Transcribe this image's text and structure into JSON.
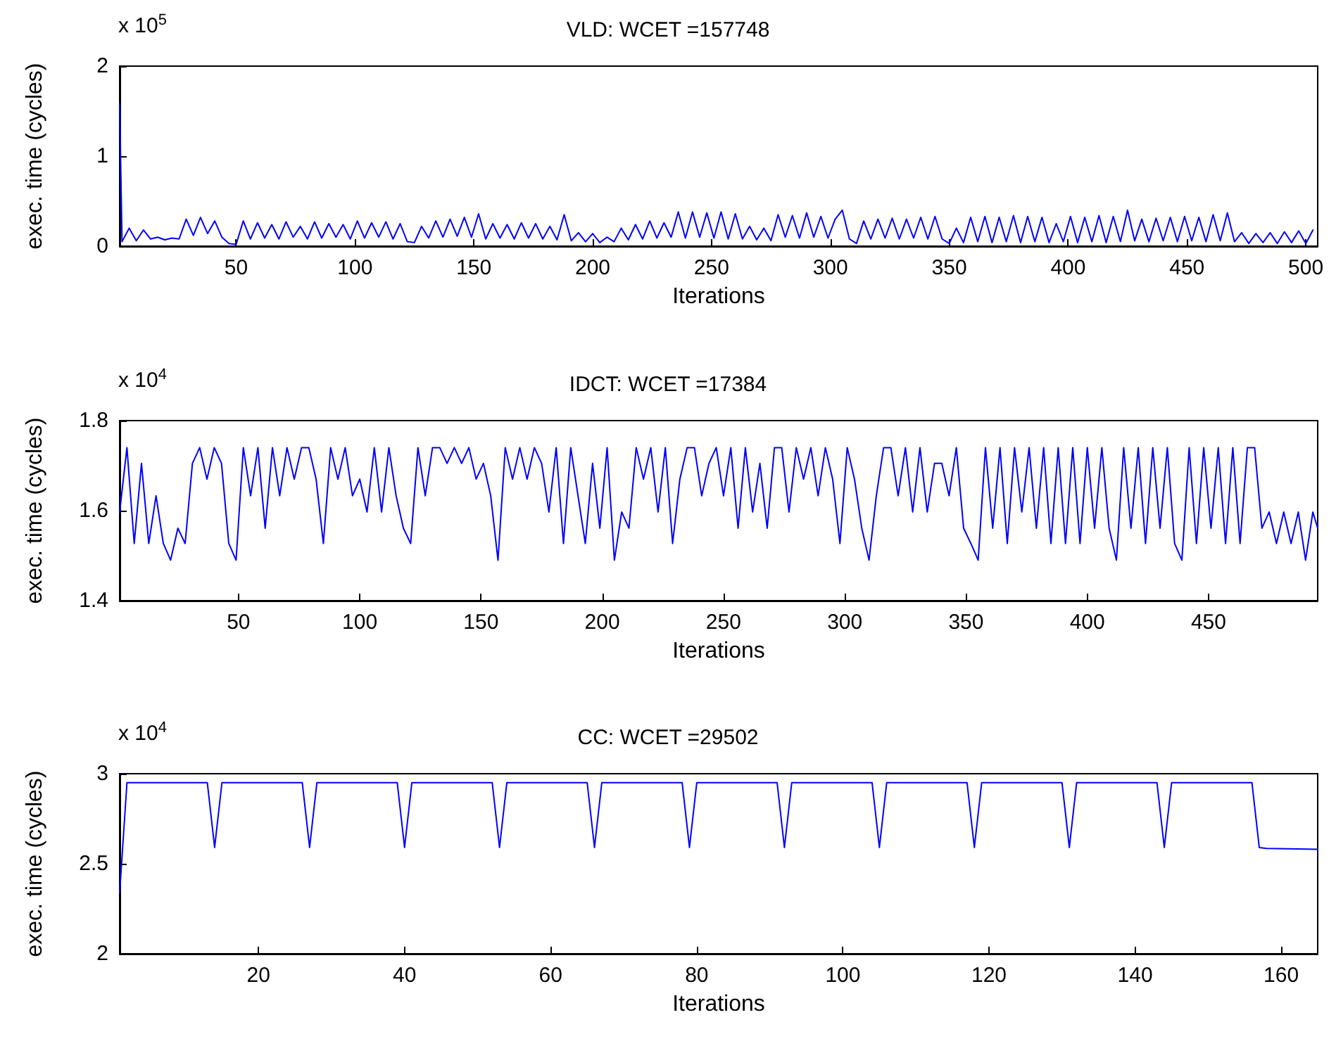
{
  "chart_data": [
    {
      "type": "line",
      "title": "VLD: WCET =157748",
      "xlabel": "Iterations",
      "ylabel": "exec. time (cycles)",
      "annotations": [
        "x 10$^{5}$"
      ],
      "color": "#0000ff",
      "marker": "none",
      "line_style": "solid",
      "xlim": [
        1,
        505
      ],
      "xticks": [
        50,
        100,
        150,
        200,
        250,
        300,
        350,
        400,
        450,
        500
      ],
      "ylim": [
        0,
        2
      ],
      "yticks": [
        0,
        1,
        2
      ],
      "x": [
        1,
        2,
        5,
        8,
        11,
        14,
        17,
        20,
        23,
        26,
        29,
        32,
        35,
        38,
        41,
        44,
        47,
        50,
        53,
        56,
        59,
        62,
        65,
        68,
        71,
        74,
        77,
        80,
        83,
        86,
        89,
        92,
        95,
        98,
        101,
        104,
        107,
        110,
        113,
        116,
        119,
        122,
        125,
        128,
        131,
        134,
        137,
        140,
        143,
        146,
        149,
        152,
        155,
        158,
        161,
        164,
        167,
        170,
        173,
        176,
        179,
        182,
        185,
        188,
        191,
        194,
        197,
        200,
        203,
        206,
        209,
        212,
        215,
        218,
        221,
        224,
        227,
        230,
        233,
        236,
        239,
        242,
        245,
        248,
        251,
        254,
        257,
        260,
        263,
        266,
        269,
        272,
        275,
        278,
        281,
        284,
        287,
        290,
        293,
        296,
        299,
        302,
        305,
        308,
        311,
        314,
        317,
        320,
        323,
        326,
        329,
        332,
        335,
        338,
        341,
        344,
        347,
        350,
        353,
        356,
        359,
        362,
        365,
        368,
        371,
        374,
        377,
        380,
        383,
        386,
        389,
        392,
        395,
        398,
        401,
        404,
        407,
        410,
        413,
        416,
        419,
        422,
        425,
        428,
        431,
        434,
        437,
        440,
        443,
        446,
        449,
        452,
        455,
        458,
        461,
        464,
        467,
        470,
        473,
        476,
        479,
        482,
        485,
        488,
        491,
        494,
        497,
        500,
        503
      ],
      "values": [
        1.58,
        0.05,
        0.2,
        0.06,
        0.18,
        0.08,
        0.1,
        0.07,
        0.09,
        0.08,
        0.3,
        0.12,
        0.32,
        0.14,
        0.28,
        0.1,
        0.03,
        0.02,
        0.28,
        0.08,
        0.26,
        0.09,
        0.24,
        0.08,
        0.27,
        0.1,
        0.22,
        0.08,
        0.27,
        0.09,
        0.25,
        0.1,
        0.24,
        0.08,
        0.28,
        0.09,
        0.26,
        0.1,
        0.27,
        0.08,
        0.25,
        0.05,
        0.04,
        0.22,
        0.09,
        0.28,
        0.1,
        0.3,
        0.11,
        0.32,
        0.1,
        0.36,
        0.08,
        0.25,
        0.09,
        0.24,
        0.08,
        0.26,
        0.09,
        0.25,
        0.08,
        0.22,
        0.07,
        0.35,
        0.06,
        0.15,
        0.05,
        0.14,
        0.04,
        0.1,
        0.05,
        0.2,
        0.07,
        0.24,
        0.08,
        0.28,
        0.09,
        0.26,
        0.1,
        0.38,
        0.09,
        0.38,
        0.1,
        0.37,
        0.09,
        0.38,
        0.08,
        0.36,
        0.08,
        0.22,
        0.07,
        0.2,
        0.06,
        0.35,
        0.1,
        0.34,
        0.09,
        0.37,
        0.1,
        0.33,
        0.09,
        0.3,
        0.4,
        0.08,
        0.03,
        0.28,
        0.08,
        0.3,
        0.09,
        0.31,
        0.08,
        0.3,
        0.09,
        0.32,
        0.08,
        0.33,
        0.08,
        0.03,
        0.2,
        0.04,
        0.32,
        0.05,
        0.33,
        0.04,
        0.32,
        0.05,
        0.34,
        0.04,
        0.33,
        0.05,
        0.32,
        0.04,
        0.25,
        0.05,
        0.33,
        0.04,
        0.32,
        0.05,
        0.34,
        0.04,
        0.33,
        0.05,
        0.4,
        0.06,
        0.3,
        0.05,
        0.31,
        0.06,
        0.32,
        0.05,
        0.33,
        0.06,
        0.32,
        0.05,
        0.35,
        0.06,
        0.37,
        0.05,
        0.15,
        0.03,
        0.14,
        0.04,
        0.15,
        0.03,
        0.16,
        0.04,
        0.17,
        0.03,
        0.18
      ]
    },
    {
      "type": "line",
      "title": "IDCT: WCET =17384",
      "xlabel": "Iterations",
      "ylabel": "exec. time (cycles)",
      "annotations": [
        "x 10$^{4}$"
      ],
      "color": "#0000ff",
      "marker": "none",
      "line_style": "solid",
      "xlim": [
        1,
        495
      ],
      "xticks": [
        50,
        100,
        150,
        200,
        250,
        300,
        350,
        400,
        450
      ],
      "ylim": [
        1.4,
        1.8
      ],
      "yticks": [
        1.4,
        1.6,
        1.8
      ],
      "x": [
        1,
        4,
        7,
        10,
        13,
        16,
        19,
        22,
        25,
        28,
        31,
        34,
        37,
        40,
        43,
        46,
        49,
        52,
        55,
        58,
        61,
        64,
        67,
        70,
        73,
        76,
        79,
        82,
        85,
        88,
        91,
        94,
        97,
        100,
        103,
        106,
        109,
        112,
        115,
        118,
        121,
        124,
        127,
        130,
        133,
        136,
        139,
        142,
        145,
        148,
        151,
        154,
        157,
        160,
        163,
        166,
        169,
        172,
        175,
        178,
        181,
        184,
        187,
        190,
        193,
        196,
        199,
        202,
        205,
        208,
        211,
        214,
        217,
        220,
        223,
        226,
        229,
        232,
        235,
        238,
        241,
        244,
        247,
        250,
        253,
        256,
        259,
        262,
        265,
        268,
        271,
        274,
        277,
        280,
        283,
        286,
        289,
        292,
        295,
        298,
        301,
        304,
        307,
        310,
        313,
        316,
        319,
        322,
        325,
        328,
        331,
        334,
        337,
        340,
        343,
        346,
        349,
        352,
        355,
        358,
        361,
        364,
        367,
        370,
        373,
        376,
        379,
        382,
        385,
        388,
        391,
        394,
        397,
        400,
        403,
        406,
        409,
        412,
        415,
        418,
        421,
        424,
        427,
        430,
        433,
        436,
        439,
        442,
        445,
        448,
        451,
        454,
        457,
        460,
        463,
        466,
        469,
        472,
        475,
        478,
        481,
        484,
        487,
        490,
        493,
        495
      ],
      "values": [
        1.597,
        1.74,
        1.527,
        1.705,
        1.527,
        1.633,
        1.527,
        1.49,
        1.561,
        1.527,
        1.705,
        1.74,
        1.67,
        1.74,
        1.705,
        1.527,
        1.49,
        1.74,
        1.633,
        1.74,
        1.561,
        1.74,
        1.633,
        1.74,
        1.67,
        1.74,
        1.74,
        1.67,
        1.527,
        1.74,
        1.67,
        1.74,
        1.633,
        1.67,
        1.597,
        1.74,
        1.597,
        1.74,
        1.633,
        1.561,
        1.527,
        1.74,
        1.633,
        1.74,
        1.74,
        1.705,
        1.74,
        1.705,
        1.74,
        1.67,
        1.705,
        1.633,
        1.49,
        1.74,
        1.67,
        1.74,
        1.67,
        1.74,
        1.705,
        1.597,
        1.74,
        1.527,
        1.74,
        1.633,
        1.527,
        1.705,
        1.561,
        1.74,
        1.49,
        1.597,
        1.561,
        1.74,
        1.67,
        1.74,
        1.597,
        1.74,
        1.527,
        1.67,
        1.74,
        1.74,
        1.633,
        1.705,
        1.74,
        1.633,
        1.74,
        1.561,
        1.74,
        1.597,
        1.705,
        1.561,
        1.74,
        1.74,
        1.597,
        1.74,
        1.67,
        1.74,
        1.633,
        1.74,
        1.67,
        1.527,
        1.74,
        1.67,
        1.561,
        1.49,
        1.633,
        1.74,
        1.74,
        1.633,
        1.74,
        1.597,
        1.74,
        1.597,
        1.705,
        1.705,
        1.633,
        1.74,
        1.561,
        1.527,
        1.49,
        1.74,
        1.561,
        1.74,
        1.527,
        1.74,
        1.597,
        1.74,
        1.561,
        1.74,
        1.527,
        1.74,
        1.527,
        1.74,
        1.527,
        1.74,
        1.561,
        1.74,
        1.561,
        1.49,
        1.74,
        1.561,
        1.74,
        1.527,
        1.74,
        1.561,
        1.74,
        1.527,
        1.49,
        1.74,
        1.527,
        1.74,
        1.561,
        1.74,
        1.527,
        1.74,
        1.527,
        1.74,
        1.74,
        1.561,
        1.597,
        1.527,
        1.597,
        1.527,
        1.597,
        1.49,
        1.597,
        1.561
      ]
    },
    {
      "type": "line",
      "title": "CC: WCET =29502",
      "xlabel": "Iterations",
      "ylabel": "exec. time (cycles)",
      "annotations": [
        "x 10$^{4}$"
      ],
      "color": "#0000ff",
      "marker": "none",
      "line_style": "solid",
      "xlim": [
        1,
        165
      ],
      "xticks": [
        20,
        40,
        60,
        80,
        100,
        120,
        140,
        160
      ],
      "ylim": [
        2,
        3
      ],
      "yticks": [
        2,
        2.5,
        3
      ],
      "x": [
        1,
        2,
        13,
        14,
        15,
        26,
        27,
        28,
        39,
        40,
        41,
        52,
        53,
        54,
        65,
        66,
        67,
        78,
        79,
        80,
        91,
        92,
        93,
        104,
        105,
        106,
        117,
        118,
        119,
        130,
        131,
        132,
        143,
        144,
        145,
        156,
        157,
        158,
        165
      ],
      "values": [
        2.34,
        2.95,
        2.95,
        2.59,
        2.95,
        2.95,
        2.59,
        2.95,
        2.95,
        2.59,
        2.95,
        2.95,
        2.59,
        2.95,
        2.95,
        2.59,
        2.95,
        2.95,
        2.59,
        2.95,
        2.95,
        2.59,
        2.95,
        2.95,
        2.59,
        2.95,
        2.95,
        2.59,
        2.95,
        2.95,
        2.59,
        2.95,
        2.95,
        2.59,
        2.95,
        2.95,
        2.59,
        2.585,
        2.58
      ]
    }
  ]
}
